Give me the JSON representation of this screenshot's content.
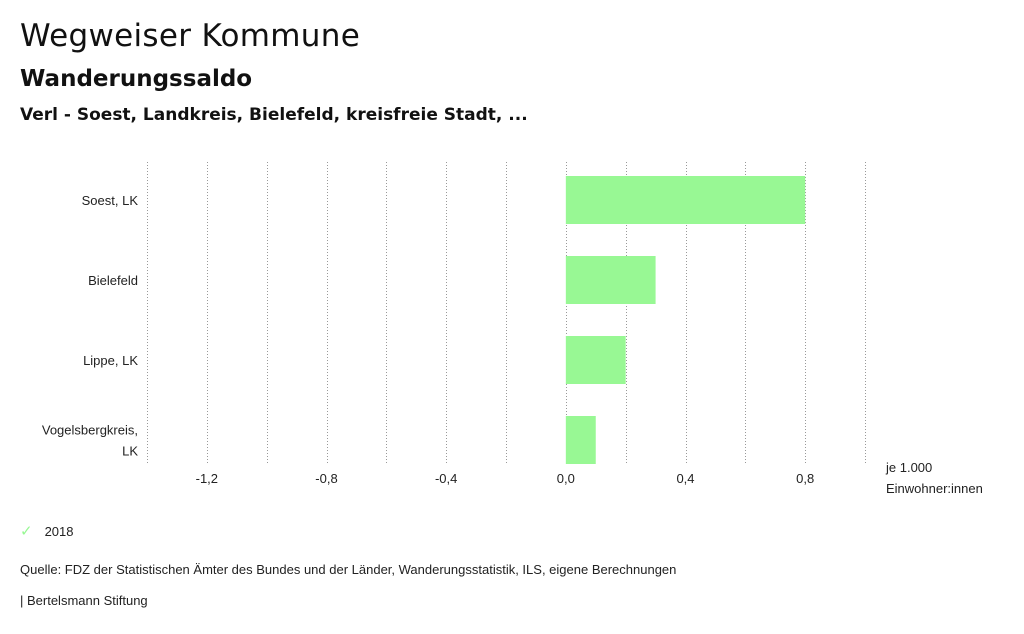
{
  "header": {
    "title": "Wegweiser Kommune",
    "subtitle": "Wanderungssaldo",
    "places": "Verl - Soest, Landkreis, Bielefeld, kreisfreie Stadt, ..."
  },
  "chart_data": {
    "type": "bar",
    "orientation": "horizontal",
    "categories": [
      [
        "Soest, LK"
      ],
      [
        "Bielefeld"
      ],
      [
        "Lippe, LK"
      ],
      [
        "Vogelsbergkreis,",
        "LK"
      ]
    ],
    "series": [
      {
        "name": "2018",
        "values": [
          0.8,
          0.3,
          0.2,
          0.1
        ],
        "color": "#98f894"
      }
    ],
    "xlim": [
      -1.4,
      1.0
    ],
    "xticks": [
      -1.2,
      -0.8,
      -0.4,
      0.0,
      0.4,
      0.8
    ],
    "xtick_labels": [
      "-1,2",
      "-0,8",
      "-0,4",
      "0,0",
      "0,4",
      "0,8"
    ],
    "gridlines": [
      -1.4,
      -1.2,
      -1.0,
      -0.8,
      -0.6,
      -0.4,
      -0.2,
      0.0,
      0.2,
      0.4,
      0.6,
      0.8,
      1.0
    ],
    "xlabel": [
      "je 1.000",
      "Einwohner:innen"
    ],
    "grid": true,
    "grid_color": "#999999"
  },
  "legend": {
    "label": "2018",
    "color": "#98f894"
  },
  "footer": {
    "source": "Quelle: FDZ der Statistischen Ämter des Bundes und der Länder, Wanderungsstatistik, ILS, eigene Berechnungen",
    "brand": "| Bertelsmann Stiftung"
  }
}
